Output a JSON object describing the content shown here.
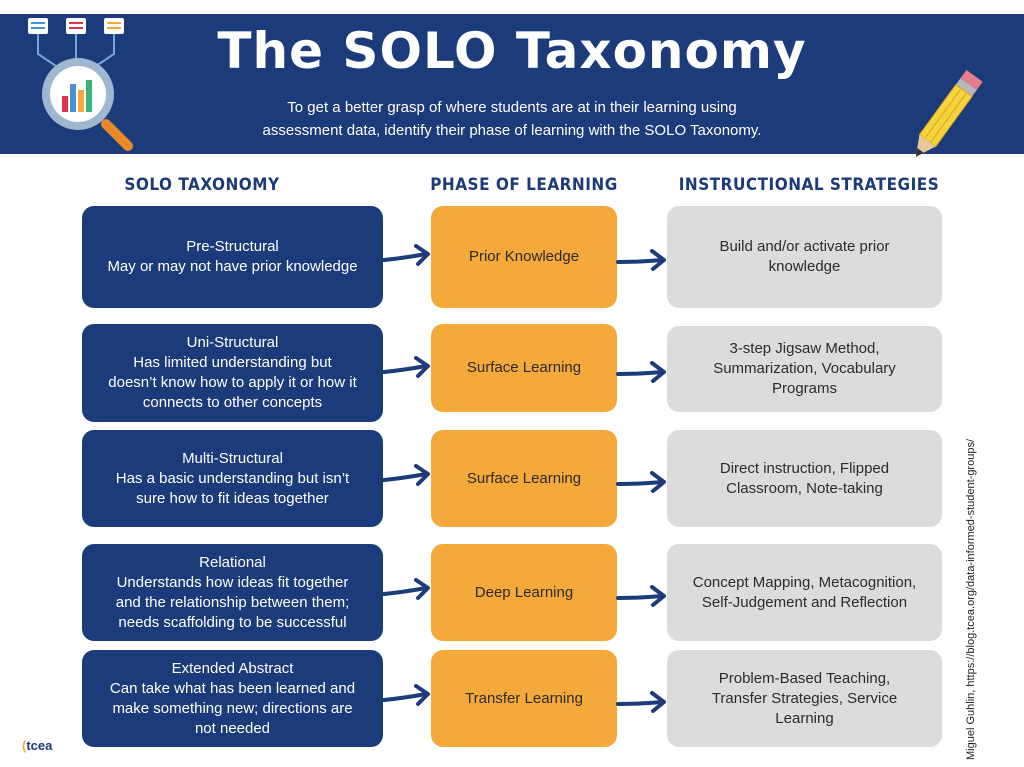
{
  "header": {
    "title": "The SOLO Taxonomy",
    "subtitle_line1": "To get a better grasp of where students are at in their learning using",
    "subtitle_line2": "assessment data, identify their phase of learning with the SOLO Taxonomy."
  },
  "columns": {
    "solo": "SOLO TAXONOMY",
    "phase": "PHASE OF LEARNING",
    "strategies": "INSTRUCTIONAL STRATEGIES"
  },
  "rows": [
    {
      "solo": [
        "Pre-Structural",
        "May or may not have prior knowledge"
      ],
      "phase": "Prior Knowledge",
      "strategies": [
        "Build and/or activate prior",
        "knowledge"
      ]
    },
    {
      "solo": [
        "Uni-Structural",
        "Has limited understanding but",
        "doesn’t know how to apply it or how it",
        "connects to other concepts"
      ],
      "phase": "Surface Learning",
      "strategies": [
        "3-step Jigsaw Method,",
        "Summarization, Vocabulary",
        "Programs"
      ]
    },
    {
      "solo": [
        "Multi-Structural",
        "Has a basic understanding but isn’t",
        "sure how to fit ideas together"
      ],
      "phase": "Surface Learning",
      "strategies": [
        "Direct instruction, Flipped",
        "Classroom, Note-taking"
      ]
    },
    {
      "solo": [
        "Relational",
        "Understands how ideas fit together",
        "and the relationship between them;",
        "needs scaffolding to be successful"
      ],
      "phase": "Deep Learning",
      "strategies": [
        "Concept Mapping, Metacognition,",
        "Self-Judgement and Reflection"
      ]
    },
    {
      "solo": [
        "Extended Abstract",
        "Can take what has been learned and",
        "make something new; directions are",
        "not needed"
      ],
      "phase": "Transfer Learning",
      "strategies": [
        "Problem-Based Teaching,",
        "Transfer Strategies, Service",
        "Learning"
      ]
    }
  ],
  "credit": "Miguel Guhlin, https://blog.tcea.org/data-informed-student-groups/",
  "logo": "tcea",
  "icons": {
    "header_left": "magnifier-chart-icon",
    "header_right": "pencil-icon",
    "arrow": "arrow-right-icon"
  },
  "colors": {
    "navy": "#1c3b7a",
    "orange": "#f5a93b",
    "gray": "#dcdcdc"
  }
}
